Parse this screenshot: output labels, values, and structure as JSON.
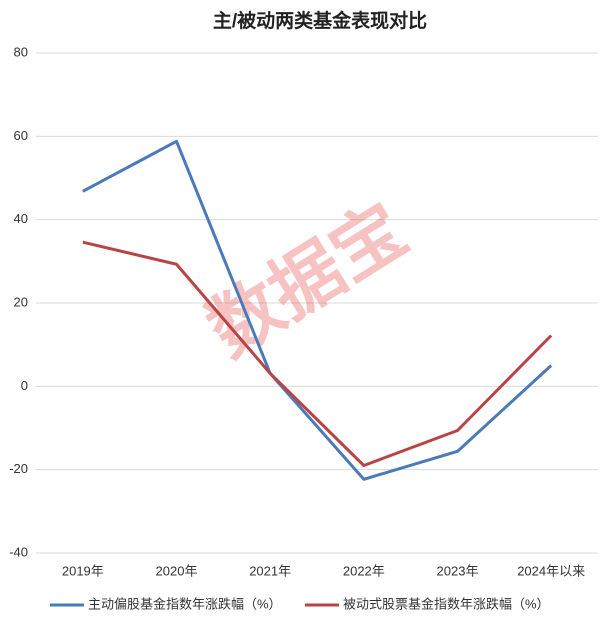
{
  "chart_data": {
    "type": "line",
    "title": "主/被动两类基金表现对比",
    "watermark": "数据宝",
    "categories": [
      "2019年",
      "2020年",
      "2021年",
      "2022年",
      "2023年",
      "2024年以来"
    ],
    "series": [
      {
        "name": "主动偏股基金指数年涨跌幅（%）",
        "color": "#4a7ab8",
        "values": [
          46.8,
          58.8,
          3.1,
          -22.3,
          -15.6,
          5.0
        ]
      },
      {
        "name": "被动式股票基金指数年涨跌幅（%）",
        "color": "#b84443",
        "values": [
          34.6,
          29.3,
          3.1,
          -19.0,
          -10.6,
          12.2
        ]
      }
    ],
    "ylim": [
      -40,
      80
    ],
    "yticks": [
      -40,
      -20,
      0,
      20,
      40,
      60,
      80
    ],
    "grid": true,
    "legend": "bottom"
  }
}
